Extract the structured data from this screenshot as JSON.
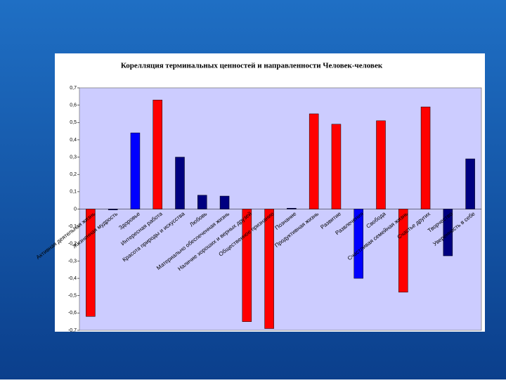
{
  "chart_data": {
    "type": "bar",
    "title": "Корелляция терминальных ценностей и направленности Человек-человек",
    "categories": [
      "Активная деятельная жизнь",
      "Жизненная мудрость",
      "Здоровье",
      "Интересная работа",
      "Красота природы и искусства",
      "Любовь",
      "Материально обеспеченная жизнь",
      "Наличие хороших и верных друзей",
      "Общественное признание",
      "Познание",
      "Продуктивная жизнь",
      "Развитие",
      "Развлечения",
      "Свобода",
      "Счастливая семейная жизнь",
      "Счастье других",
      "Творчество",
      "Уверенность в себе"
    ],
    "values": [
      -0.62,
      -0.005,
      0.44,
      0.63,
      0.3,
      0.08,
      0.075,
      -0.65,
      -0.69,
      0.005,
      0.55,
      0.49,
      -0.4,
      0.51,
      -0.48,
      0.59,
      -0.27,
      0.29
    ],
    "colors": [
      "#ff0000",
      "#000080",
      "#0000ff",
      "#ff0000",
      "#000080",
      "#000080",
      "#000080",
      "#ff0000",
      "#ff0000",
      "#000080",
      "#ff0000",
      "#ff0000",
      "#0000ff",
      "#ff0000",
      "#ff0000",
      "#ff0000",
      "#000080",
      "#000080"
    ],
    "ylim": [
      -0.7,
      0.7
    ],
    "yticks": [
      {
        "value": 0.7,
        "label": "0,7"
      },
      {
        "value": 0.6,
        "label": "0,6"
      },
      {
        "value": 0.5,
        "label": "0,5"
      },
      {
        "value": 0.4,
        "label": "0,4"
      },
      {
        "value": 0.3,
        "label": "0,3"
      },
      {
        "value": 0.2,
        "label": "0,2"
      },
      {
        "value": 0.1,
        "label": "0,1"
      },
      0,
      {
        "value": -0.1,
        "label": "-0,1"
      },
      {
        "value": -0.2,
        "label": "-0,2"
      },
      {
        "value": -0.3,
        "label": "-0,3"
      },
      {
        "value": -0.4,
        "label": "-0,4"
      },
      {
        "value": -0.5,
        "label": "-0,5"
      },
      {
        "value": -0.6,
        "label": "-0,6"
      },
      {
        "value": -0.7,
        "label": "-0,7"
      }
    ]
  }
}
